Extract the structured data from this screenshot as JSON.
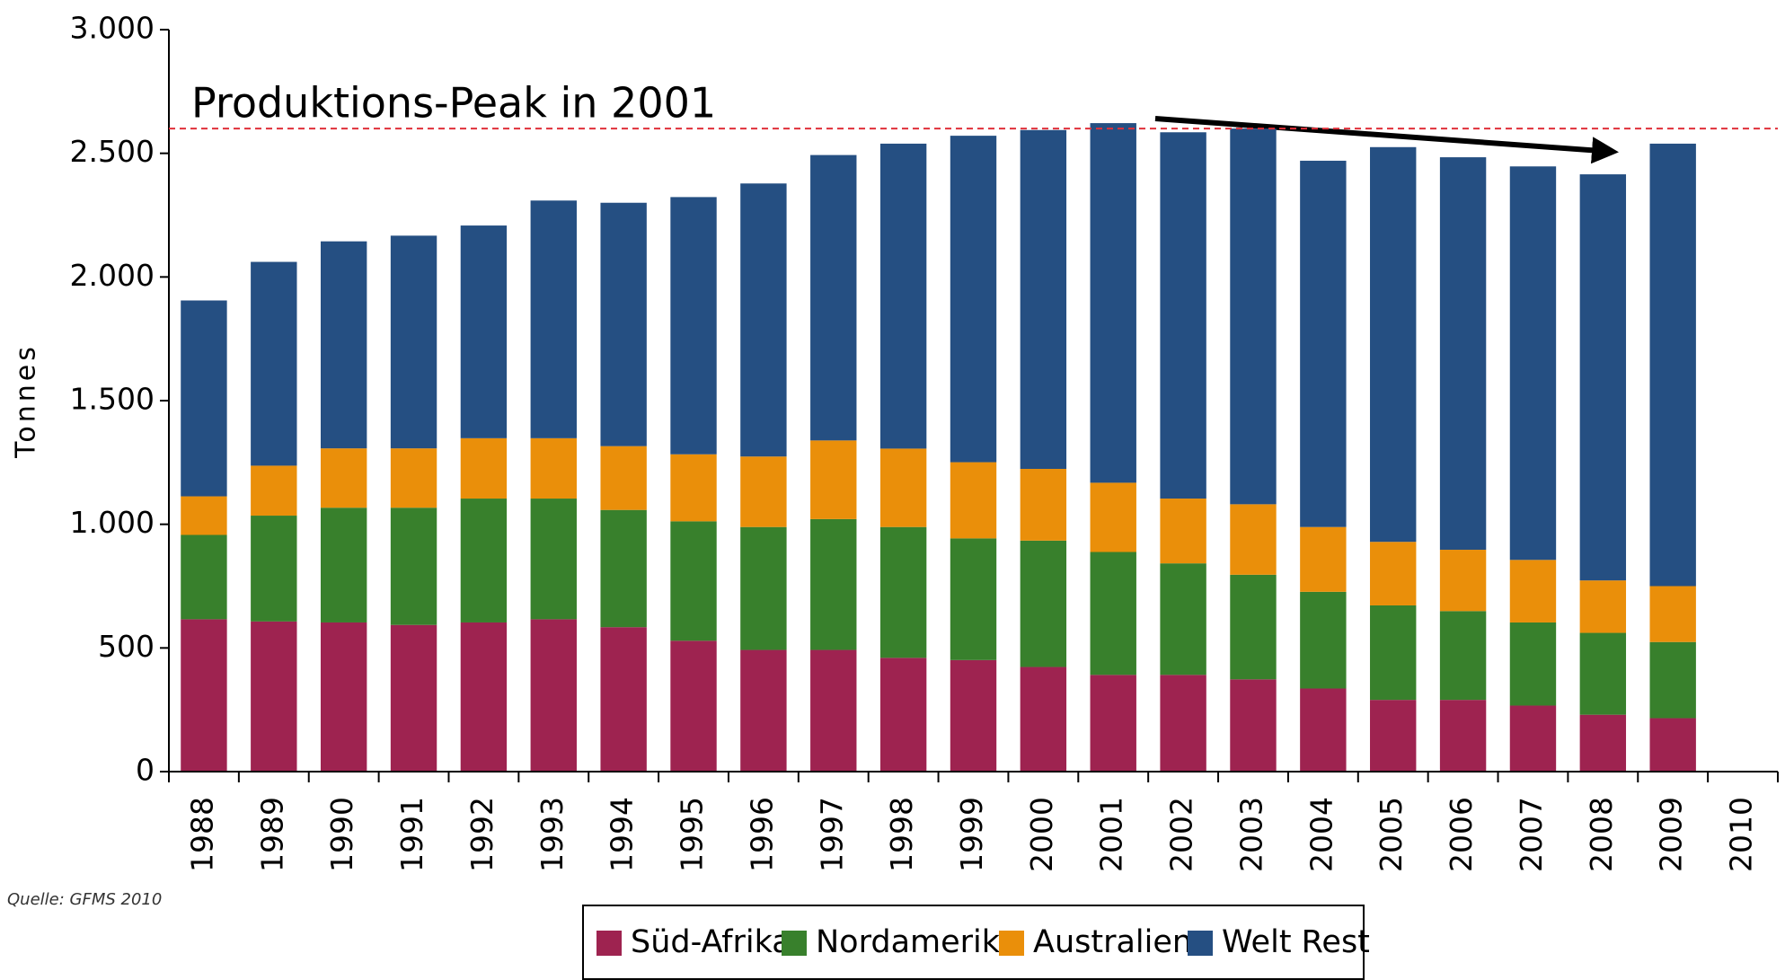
{
  "chart_data": {
    "type": "stacked_bar",
    "annotation": "Produktions-Peak in 2001",
    "y_label": "Tonnes",
    "source": "Quelle: GFMS 2010",
    "categories": [
      "1988",
      "1989",
      "1990",
      "1991",
      "1992",
      "1993",
      "1994",
      "1995",
      "1996",
      "1997",
      "1998",
      "1999",
      "2000",
      "2001",
      "2002",
      "2003",
      "2004",
      "2005",
      "2006",
      "2007",
      "2008",
      "2009",
      "2010"
    ],
    "series": [
      {
        "name": "Süd-Afrika",
        "color": "#9e2350",
        "values": [
          616,
          607,
          603,
          593,
          603,
          616,
          584,
          529,
          492,
          492,
          460,
          451,
          423,
          391,
          391,
          373,
          336,
          290,
          290,
          267,
          230,
          216,
          null
        ]
      },
      {
        "name": "Nordamerika",
        "color": "#38802c",
        "values": [
          341,
          428,
          464,
          474,
          501,
          488,
          474,
          483,
          497,
          529,
          529,
          492,
          511,
          497,
          451,
          423,
          391,
          382,
          359,
          336,
          331,
          308,
          null
        ]
      },
      {
        "name": "Australien",
        "color": "#ea8f0a",
        "values": [
          156,
          202,
          240,
          240,
          244,
          244,
          258,
          271,
          285,
          318,
          317,
          308,
          290,
          280,
          262,
          285,
          262,
          257,
          248,
          253,
          212,
          226,
          null
        ]
      },
      {
        "name": "Welt Rest",
        "color": "#254f82",
        "values": [
          792,
          824,
          837,
          860,
          860,
          961,
          984,
          1040,
          1104,
          1154,
          1233,
          1320,
          1370,
          1454,
          1481,
          1519,
          1481,
          1596,
          1587,
          1591,
          1642,
          1789,
          null
        ]
      }
    ],
    "reference_line": {
      "value": 2600,
      "color": "#e0303a"
    },
    "ylim": [
      0,
      3000
    ],
    "yticks": [
      0,
      500,
      {
        "value": 1000,
        "label": "1.000"
      },
      {
        "value": 1500,
        "label": "1.500"
      },
      {
        "value": 2000,
        "label": "2.000"
      },
      {
        "value": 2500,
        "label": "2.500"
      },
      {
        "value": 3000,
        "label": "3.000"
      }
    ],
    "legend": "bottom"
  }
}
